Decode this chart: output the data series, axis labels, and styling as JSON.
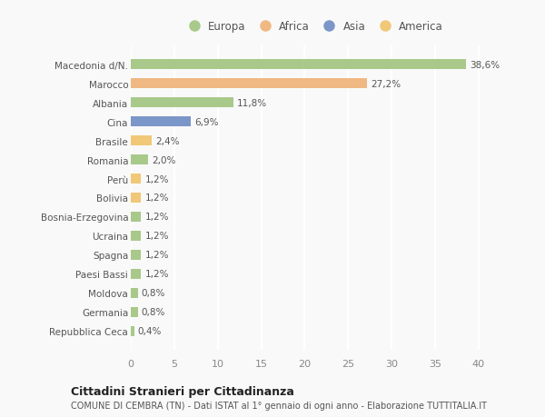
{
  "categories": [
    "Repubblica Ceca",
    "Germania",
    "Moldova",
    "Paesi Bassi",
    "Spagna",
    "Ucraina",
    "Bosnia-Erzegovina",
    "Bolivia",
    "Perù",
    "Romania",
    "Brasile",
    "Cina",
    "Albania",
    "Marocco",
    "Macedonia d/N."
  ],
  "values": [
    0.4,
    0.8,
    0.8,
    1.2,
    1.2,
    1.2,
    1.2,
    1.2,
    1.2,
    2.0,
    2.4,
    6.9,
    11.8,
    27.2,
    38.6
  ],
  "colors": [
    "#a8c98a",
    "#a8c98a",
    "#a8c98a",
    "#a8c98a",
    "#a8c98a",
    "#a8c98a",
    "#a8c98a",
    "#f0c878",
    "#f0c878",
    "#a8c98a",
    "#f0c878",
    "#7b96c8",
    "#a8c98a",
    "#f0b882",
    "#a8c98a"
  ],
  "labels": [
    "0,4%",
    "0,8%",
    "0,8%",
    "1,2%",
    "1,2%",
    "1,2%",
    "1,2%",
    "1,2%",
    "1,2%",
    "2,0%",
    "2,4%",
    "6,9%",
    "11,8%",
    "27,2%",
    "38,6%"
  ],
  "legend": {
    "Europa": "#a8c98a",
    "Africa": "#f0b882",
    "Asia": "#7b96c8",
    "America": "#f0c878"
  },
  "title": "Cittadini Stranieri per Cittadinanza",
  "subtitle": "COMUNE DI CEMBRA (TN) - Dati ISTAT al 1° gennaio di ogni anno - Elaborazione TUTTITALIA.IT",
  "xlim": [
    0,
    42
  ],
  "xticks": [
    0,
    5,
    10,
    15,
    20,
    25,
    30,
    35,
    40
  ],
  "background_color": "#f9f9f9",
  "grid_color": "#ffffff"
}
